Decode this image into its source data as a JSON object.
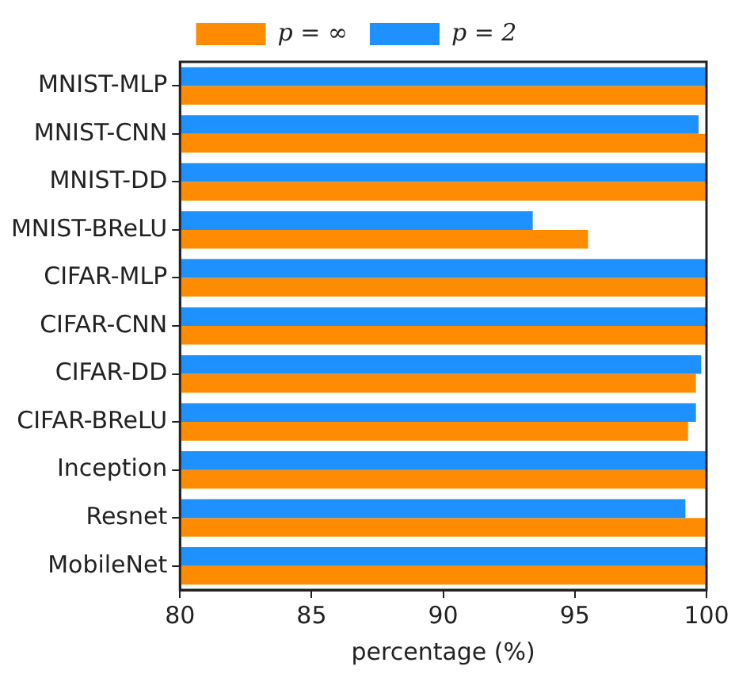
{
  "chart_data": {
    "type": "bar",
    "orientation": "horizontal",
    "xlabel": "percentage (%)",
    "categories": [
      "MNIST-MLP",
      "MNIST-CNN",
      "MNIST-DD",
      "MNIST-BReLU",
      "CIFAR-MLP",
      "CIFAR-CNN",
      "CIFAR-DD",
      "CIFAR-BReLU",
      "Inception",
      "Resnet",
      "MobileNet"
    ],
    "series": [
      {
        "name": "p = 2",
        "color": "#1e90ff",
        "values": [
          100,
          99.7,
          100,
          93.4,
          100,
          100,
          99.8,
          99.6,
          100,
          99.2,
          100
        ]
      },
      {
        "name": "p = ∞",
        "color": "#ff8c00",
        "values": [
          100,
          100,
          100,
          95.5,
          100,
          100,
          99.6,
          99.3,
          100,
          100,
          100
        ]
      }
    ],
    "xlim": [
      80,
      100
    ],
    "xticks": [
      80,
      85,
      90,
      95,
      100
    ],
    "grid": false,
    "legend": "top"
  }
}
